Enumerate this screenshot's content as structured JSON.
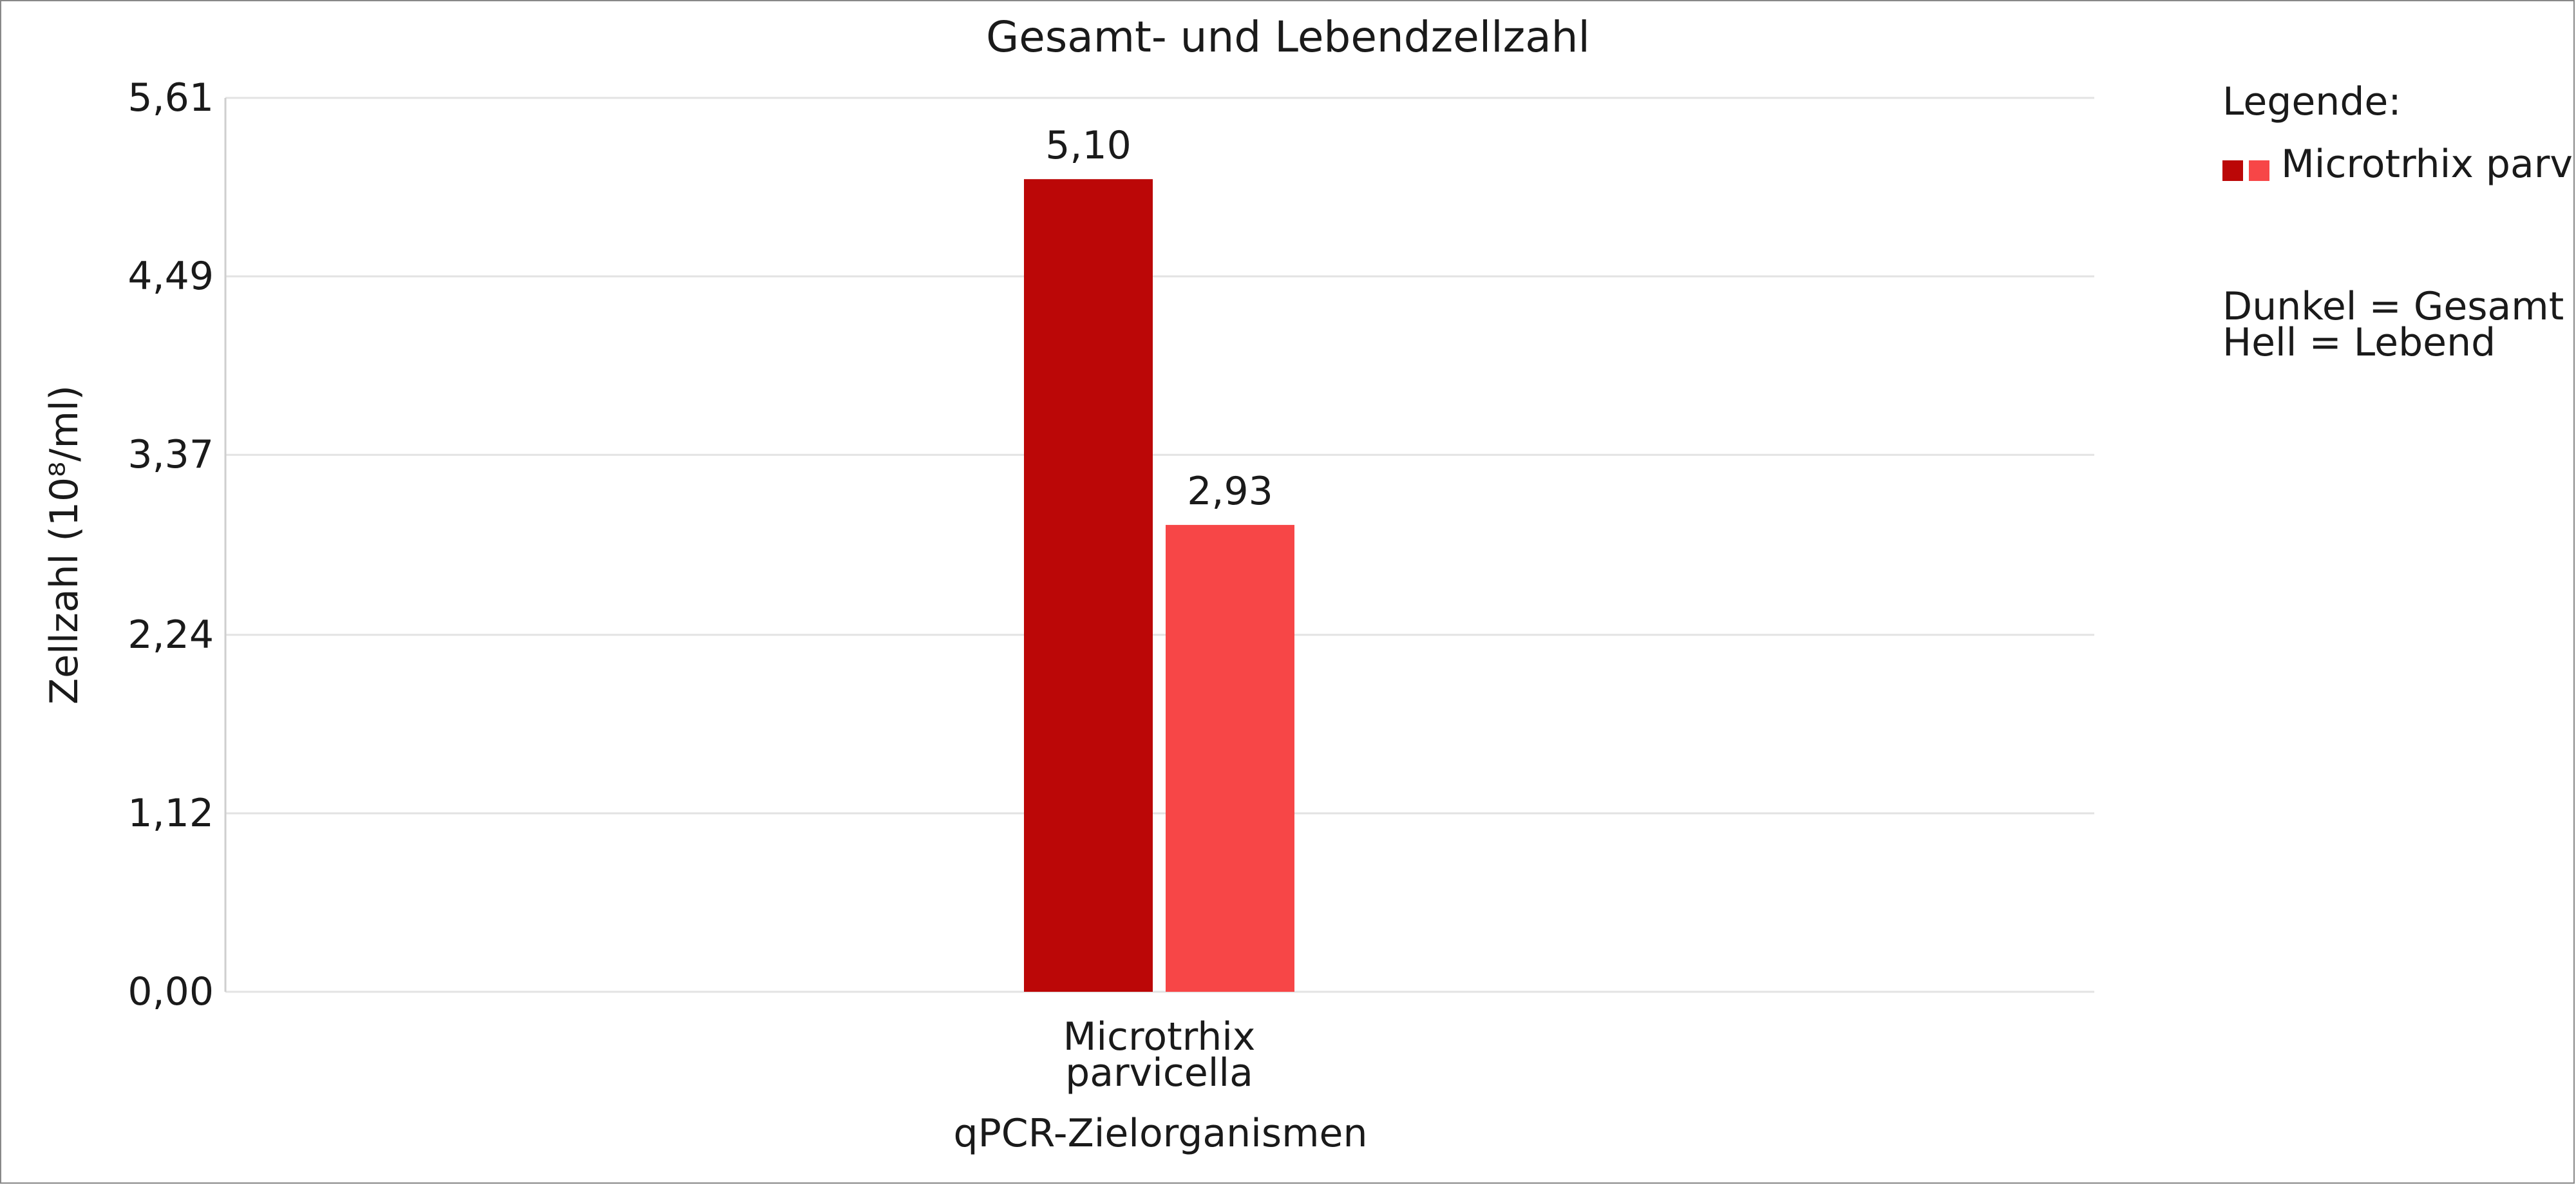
{
  "chart_data": {
    "type": "bar",
    "title": "Gesamt- und Lebendzellzahl",
    "xlabel": "qPCR-Zielorganismen",
    "ylabel": "Zellzahl (10⁸/ml)",
    "categories": [
      [
        "Microtrhix",
        "parvicella"
      ]
    ],
    "series": [
      {
        "values": [
          5.1
        ],
        "labels": [
          "5,10"
        ],
        "color": "#bb0707"
      },
      {
        "values": [
          2.93
        ],
        "labels": [
          "2,93"
        ],
        "color": "#f74647"
      }
    ],
    "ylim": [
      0,
      5.61
    ],
    "yticks": [
      0,
      1.12,
      2.24,
      3.37,
      4.49,
      5.61
    ],
    "ytick_labels": [
      "0,00",
      "1,12",
      "2,24",
      "3,37",
      "4,49",
      "5,61"
    ],
    "grid": true,
    "legend": {
      "placement": "right",
      "heading": "Legende:",
      "entry": "Microtrhix parvicella",
      "swatch_colors": [
        "#bb0707",
        "#f74647"
      ],
      "notes": [
        "Dunkel = Gesamt",
        "Hell = Lebend"
      ]
    }
  }
}
